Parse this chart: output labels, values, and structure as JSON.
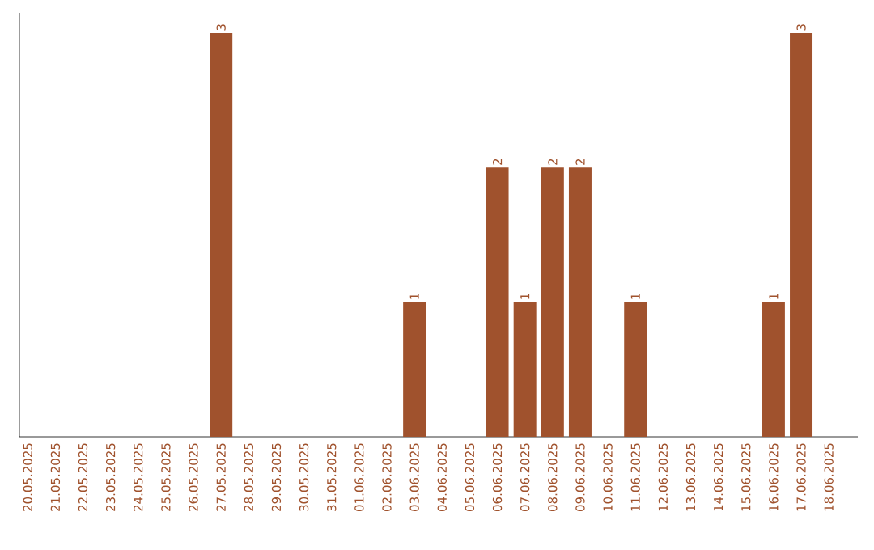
{
  "chart_data": {
    "type": "bar",
    "categories": [
      "20.05.2025",
      "21.05.2025",
      "22.05.2025",
      "23.05.2025",
      "24.05.2025",
      "25.05.2025",
      "26.05.2025",
      "27.05.2025",
      "28.05.2025",
      "29.05.2025",
      "30.05.2025",
      "31.05.2025",
      "01.06.2025",
      "02.06.2025",
      "03.06.2025",
      "04.06.2025",
      "05.06.2025",
      "06.06.2025",
      "07.06.2025",
      "08.06.2025",
      "09.06.2025",
      "10.06.2025",
      "11.06.2025",
      "12.06.2025",
      "13.06.2025",
      "14.06.2025",
      "15.06.2025",
      "16.06.2025",
      "17.06.2025",
      "18.06.2025"
    ],
    "values": [
      0,
      0,
      0,
      0,
      0,
      0,
      0,
      3,
      0,
      0,
      0,
      0,
      0,
      0,
      1,
      0,
      0,
      2,
      1,
      2,
      2,
      0,
      1,
      0,
      0,
      0,
      0,
      1,
      3,
      0
    ],
    "value_labels": [
      null,
      null,
      null,
      null,
      null,
      null,
      null,
      "3",
      null,
      null,
      null,
      null,
      null,
      null,
      "1",
      null,
      null,
      "2",
      "1",
      "2",
      "2",
      null,
      "1",
      null,
      null,
      null,
      null,
      "1",
      "3",
      null
    ],
    "color": "#a0522d",
    "tick_labels": "x"
  }
}
